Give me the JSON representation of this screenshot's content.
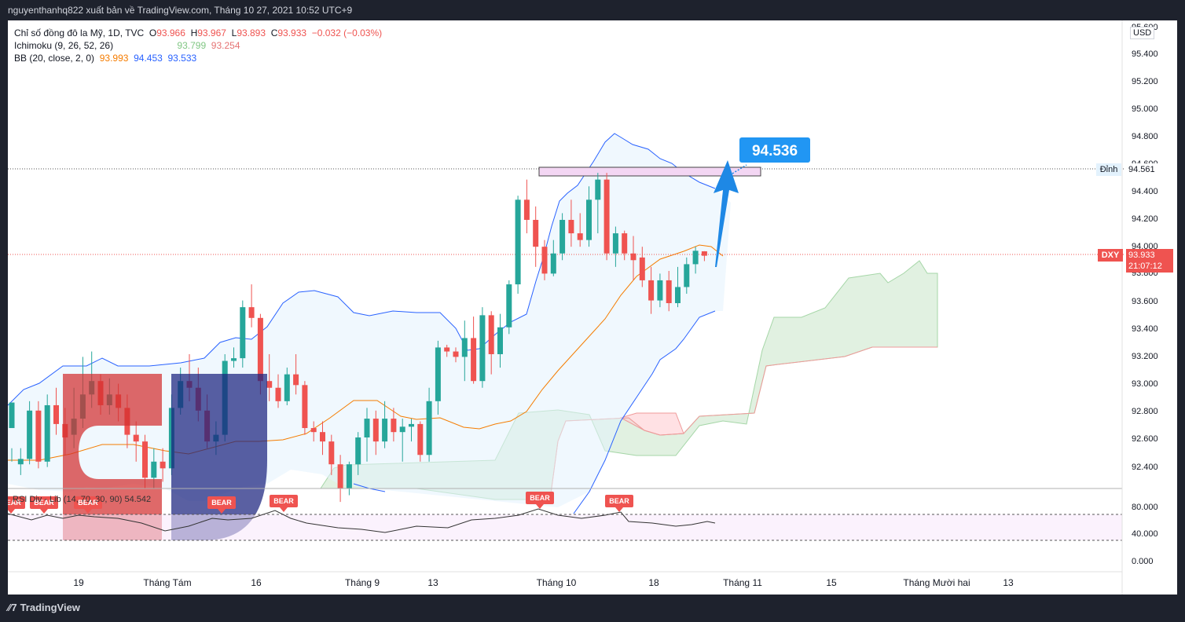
{
  "header": {
    "publisher_text": "nguyenthanhq822 xuất bản về TradingView.com, Tháng 10 27, 2021 10:52 UTC+9"
  },
  "legend": {
    "symbol": "Chỉ số đồng đô la Mỹ, 1D, TVC",
    "o_label": "O",
    "o_value": "93.966",
    "h_label": "H",
    "h_value": "93.967",
    "l_label": "L",
    "l_value": "93.893",
    "c_label": "C",
    "c_value": "93.933",
    "change": "−0.032 (−0.03%)",
    "ichimoku_label": "Ichimoku (9, 26, 52, 26)",
    "ichimoku_v1": "93.799",
    "ichimoku_v2": "93.254",
    "bb_label": "BB (20, close, 2, 0)",
    "bb_v1": "93.993",
    "bb_v2": "94.453",
    "bb_v3": "93.533"
  },
  "rsi_legend": "RSI Div - Lib (14, 70, 30, 90)  54.542",
  "currency": "USD",
  "annotation": {
    "target_label": "94.536"
  },
  "price_tags": {
    "dinh_label": "Đỉnh",
    "dinh_value": "94.561",
    "symbol_tag": "DXY",
    "last_price": "93.933",
    "countdown": "21:07:12"
  },
  "footer": {
    "brand": "TradingView"
  },
  "colors": {
    "up": "#26a69a",
    "down": "#ef5350",
    "bb_band": "#2962ff",
    "bb_basis": "#f57c00",
    "cloud_green": "#a5d6a7",
    "cloud_red": "#ef9a9a",
    "target_blue": "#2196f3"
  },
  "chart_data": {
    "type": "candlestick",
    "y_ticks": [
      "95.600",
      "95.400",
      "95.200",
      "95.000",
      "94.800",
      "94.600",
      "94.400",
      "94.200",
      "94.000",
      "93.800",
      "93.600",
      "93.400",
      "93.200",
      "93.000",
      "92.800",
      "92.600",
      "92.400"
    ],
    "rsi_ticks": [
      "80.000",
      "40.000",
      "0.000"
    ],
    "x_ticks": [
      "19",
      "Tháng Tám",
      "16",
      "Tháng 9",
      "13",
      "Tháng 10",
      "18",
      "Tháng 11",
      "15",
      "Tháng Mười hai",
      "13"
    ],
    "ylim": [
      92.2,
      95.65
    ],
    "bear_labels": [
      "BEAR",
      "BEAR",
      "BEAR",
      "BEAR",
      "BEAR",
      "BEAR",
      "BEAR"
    ],
    "candles": [
      [
        92.65,
        92.84,
        92.5,
        92.4
      ],
      [
        92.38,
        92.42,
        92.5,
        92.3
      ],
      [
        92.42,
        92.78,
        92.85,
        92.38
      ],
      [
        92.78,
        92.4,
        92.85,
        92.35
      ],
      [
        92.4,
        92.82,
        92.9,
        92.36
      ],
      [
        92.82,
        92.68,
        92.95,
        92.6
      ],
      [
        92.68,
        92.58,
        92.8,
        92.45
      ],
      [
        92.6,
        92.72,
        92.95,
        92.5
      ],
      [
        92.72,
        92.9,
        93.18,
        92.65
      ],
      [
        92.9,
        93.0,
        93.22,
        92.8
      ],
      [
        93.0,
        92.82,
        93.05,
        92.75
      ],
      [
        92.82,
        92.9,
        93.02,
        92.75
      ],
      [
        92.9,
        92.8,
        92.98,
        92.7
      ],
      [
        92.8,
        92.6,
        92.9,
        92.5
      ],
      [
        92.6,
        92.55,
        92.7,
        92.4
      ],
      [
        92.55,
        92.28,
        92.6,
        92.2
      ],
      [
        92.28,
        92.4,
        92.5,
        92.2
      ],
      [
        92.4,
        92.35,
        92.5,
        92.25
      ],
      [
        92.35,
        92.8,
        92.9,
        92.3
      ],
      [
        92.8,
        93.0,
        93.1,
        92.75
      ],
      [
        93.0,
        92.95,
        93.2,
        92.85
      ],
      [
        92.95,
        92.78,
        93.1,
        92.7
      ],
      [
        92.78,
        92.55,
        92.9,
        92.5
      ],
      [
        92.55,
        92.6,
        92.7,
        92.45
      ],
      [
        92.6,
        93.15,
        93.2,
        92.55
      ],
      [
        93.15,
        93.17,
        93.25,
        93.1
      ],
      [
        93.17,
        93.55,
        93.6,
        93.1
      ],
      [
        93.55,
        93.47,
        93.72,
        93.4
      ],
      [
        93.47,
        93.0,
        93.5,
        92.9
      ],
      [
        93.0,
        92.95,
        93.2,
        92.85
      ],
      [
        92.95,
        92.85,
        93.05,
        92.8
      ],
      [
        92.85,
        93.05,
        93.1,
        92.82
      ],
      [
        93.05,
        92.97,
        93.2,
        92.9
      ],
      [
        92.97,
        92.65,
        93.0,
        92.6
      ],
      [
        92.65,
        92.62,
        92.7,
        92.55
      ],
      [
        92.62,
        92.55,
        92.7,
        92.45
      ],
      [
        92.55,
        92.38,
        92.6,
        92.3
      ],
      [
        92.38,
        92.2,
        92.45,
        92.1
      ],
      [
        92.2,
        92.38,
        92.4,
        92.15
      ],
      [
        92.38,
        92.58,
        92.62,
        92.3
      ],
      [
        92.58,
        92.72,
        92.8,
        92.4
      ],
      [
        92.72,
        92.55,
        92.78,
        92.45
      ],
      [
        92.55,
        92.72,
        92.85,
        92.5
      ],
      [
        92.72,
        92.62,
        92.8,
        92.55
      ],
      [
        92.62,
        92.66,
        92.72,
        92.4
      ],
      [
        92.66,
        92.68,
        92.72,
        92.55
      ],
      [
        92.68,
        92.45,
        92.7,
        92.4
      ],
      [
        92.45,
        92.85,
        92.95,
        92.4
      ],
      [
        92.85,
        93.25,
        93.3,
        92.75
      ],
      [
        93.25,
        93.22,
        93.27,
        93.18
      ],
      [
        93.22,
        93.18,
        93.25,
        93.14
      ],
      [
        93.18,
        93.32,
        93.45,
        93.0
      ],
      [
        93.32,
        93.0,
        93.48,
        92.98
      ],
      [
        93.0,
        93.49,
        93.55,
        92.95
      ],
      [
        93.49,
        93.2,
        93.52,
        93.05
      ],
      [
        93.2,
        93.4,
        93.5,
        93.1
      ],
      [
        93.4,
        93.72,
        93.75,
        93.35
      ],
      [
        93.72,
        94.35,
        94.38,
        93.65
      ],
      [
        94.35,
        94.2,
        94.5,
        94.1
      ],
      [
        94.2,
        94.0,
        94.3,
        93.85
      ],
      [
        94.0,
        93.8,
        94.05,
        93.75
      ],
      [
        93.8,
        93.95,
        94.05,
        93.78
      ],
      [
        93.95,
        94.2,
        94.25,
        93.9
      ],
      [
        94.2,
        94.1,
        94.35,
        94.0
      ],
      [
        94.1,
        94.05,
        94.25,
        94.0
      ],
      [
        94.05,
        94.35,
        94.45,
        94.0
      ],
      [
        94.35,
        94.5,
        94.55,
        94.1
      ],
      [
        94.5,
        93.95,
        94.55,
        93.9
      ],
      [
        93.95,
        94.1,
        94.15,
        93.85
      ],
      [
        94.1,
        93.95,
        94.12,
        93.9
      ],
      [
        93.95,
        93.9,
        94.08,
        93.75
      ],
      [
        93.92,
        93.75,
        94.0,
        93.7
      ],
      [
        93.75,
        93.6,
        93.85,
        93.5
      ],
      [
        93.6,
        93.75,
        93.8,
        93.55
      ],
      [
        93.75,
        93.58,
        93.82,
        93.52
      ],
      [
        93.58,
        93.7,
        93.85,
        93.55
      ],
      [
        93.7,
        93.87,
        93.92,
        93.65
      ],
      [
        93.87,
        93.97,
        94.0,
        93.8
      ],
      [
        93.966,
        93.933,
        93.967,
        93.893
      ]
    ]
  }
}
